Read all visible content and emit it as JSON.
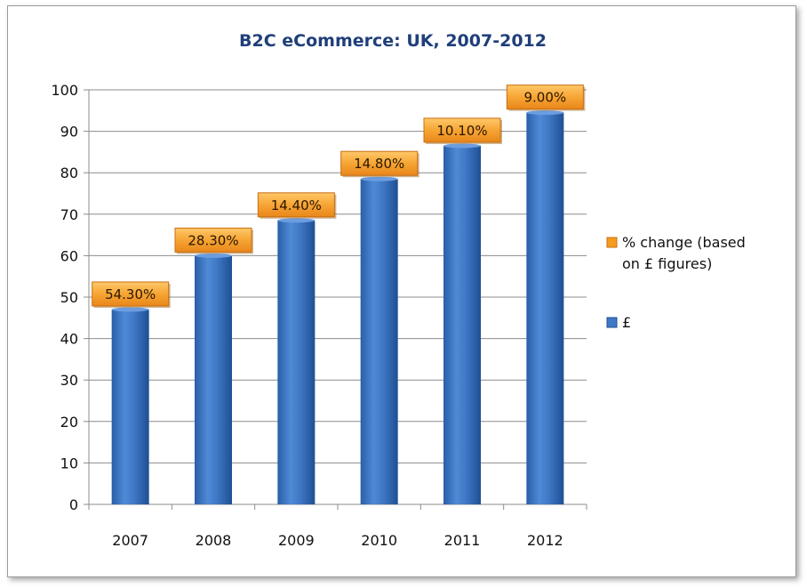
{
  "chart_data": {
    "type": "bar",
    "title": "B2C eCommerce: UK, 2007-2012",
    "categories": [
      "2007",
      "2008",
      "2009",
      "2010",
      "2011",
      "2012"
    ],
    "series": [
      {
        "name": "£",
        "values": [
          47,
          60,
          68.5,
          78.5,
          86.5,
          94.5
        ],
        "color": "#3f78c5"
      }
    ],
    "data_labels": [
      "54.30%",
      "28.30%",
      "14.40%",
      "14.80%",
      "10.10%",
      "9.00%"
    ],
    "ylim": [
      0,
      100
    ],
    "yticks": [
      "0",
      "10",
      "20",
      "30",
      "40",
      "50",
      "60",
      "70",
      "80",
      "90",
      "100"
    ],
    "grid": true,
    "legend": {
      "placement": "right",
      "entries": [
        {
          "label_lines": [
            "% change (based",
            "on £ figures)"
          ],
          "color": "#f39c1e"
        },
        {
          "label_lines": [
            "£"
          ],
          "color": "#3f78c5"
        }
      ]
    },
    "xlabel": "",
    "ylabel": ""
  }
}
